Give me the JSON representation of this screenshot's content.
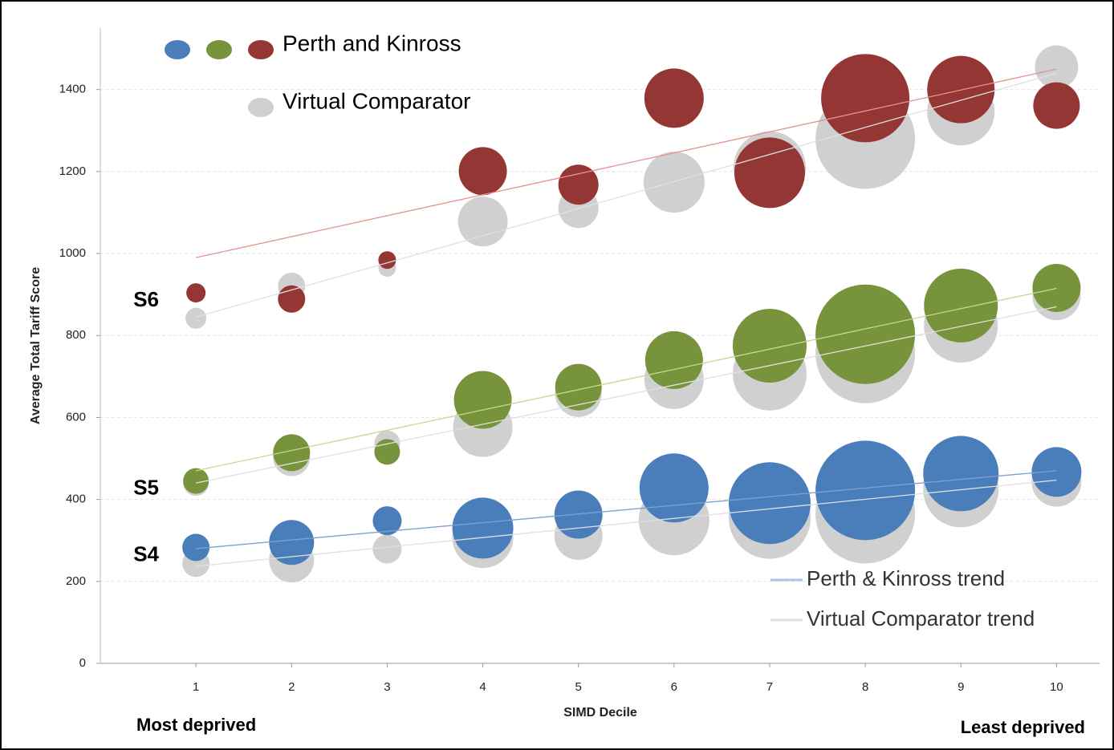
{
  "chart_data": {
    "type": "bubble",
    "x_label": "SIMD Decile",
    "y_label": "Average Total Tariff Score",
    "x": [
      1,
      2,
      3,
      4,
      5,
      6,
      7,
      8,
      9,
      10
    ],
    "xlim": [
      0,
      10.45
    ],
    "xticks": [
      1,
      2,
      3,
      4,
      5,
      6,
      7,
      8,
      9,
      10
    ],
    "ylim": [
      0,
      1550
    ],
    "yticks": [
      0,
      200,
      400,
      600,
      800,
      1000,
      1200,
      1400
    ],
    "grid": true,
    "left_note": "Most deprived",
    "right_note": "Least deprived",
    "legend": [
      {
        "name": "Perth and Kinross",
        "colors": [
          "#4a7ebb",
          "#77933c",
          "#943634"
        ]
      },
      {
        "name": "Virtual Comparator",
        "colors": [
          "#d0d0d0"
        ]
      }
    ],
    "trend_legend": [
      {
        "name": "Perth & Kinross trend",
        "color": "#a9c4e4"
      },
      {
        "name": "Virtual Comparator trend",
        "color": "#e2e2e2"
      }
    ],
    "groups": [
      {
        "label": "S4",
        "series": [
          {
            "color": "#d0d0d0",
            "values": [
              244,
              252,
              279,
              307,
              311,
              350,
              355,
              365,
              424,
              443
            ],
            "sizes": [
              17,
              28,
              18,
              38,
              30,
              44,
              51,
              62,
              47,
              31
            ],
            "trend": [
              237,
              447
            ],
            "trend_color": "#e0e0e0"
          },
          {
            "color": "#4a7ebb",
            "values": [
              283,
              295,
              348,
              330,
              363,
              428,
              391,
              422,
              463,
              467
            ],
            "sizes": [
              17,
              28,
              18,
              38,
              30,
              43,
              51,
              62,
              47,
              31
            ],
            "trend": [
              280,
              470
            ],
            "trend_color": "#7da1cf"
          }
        ]
      },
      {
        "label": "S5",
        "series": [
          {
            "color": "#d0d0d0",
            "values": [
              440,
              502,
              537,
              576,
              658,
              693,
              707,
              756,
              824,
              896
            ],
            "sizes": [
              16,
              23,
              16,
              37,
              29,
              37,
              46,
              62,
              46,
              30
            ],
            "trend": [
              440,
              870
            ],
            "trend_color": "#e0e0e0"
          },
          {
            "color": "#77933c",
            "values": [
              445,
              514,
              516,
              643,
              674,
              740,
              775,
              803,
              873,
              916
            ],
            "sizes": [
              16,
              23,
              16,
              36,
              29,
              36,
              46,
              62,
              46,
              30
            ],
            "trend": [
              470,
              915
            ],
            "trend_color": "#c6d98f"
          }
        ]
      },
      {
        "label": "S6",
        "series": [
          {
            "color": "#d0d0d0",
            "values": [
              842,
              920,
              965,
              1078,
              1111,
              1174,
              1210,
              1279,
              1346,
              1455
            ],
            "sizes": [
              13,
              17,
              11,
              31,
              25,
              38,
              45,
              62,
              42,
              27
            ],
            "trend": [
              845,
              1440
            ],
            "trend_color": "#e0e0e0"
          },
          {
            "color": "#943634",
            "values": [
              904,
              889,
              984,
              1201,
              1168,
              1379,
              1197,
              1379,
              1400,
              1361
            ],
            "sizes": [
              12,
              17,
              11,
              30,
              25,
              37,
              44,
              55,
              42,
              29
            ],
            "trend": [
              990,
              1450
            ],
            "trend_color": "#e8908e"
          }
        ]
      }
    ]
  }
}
